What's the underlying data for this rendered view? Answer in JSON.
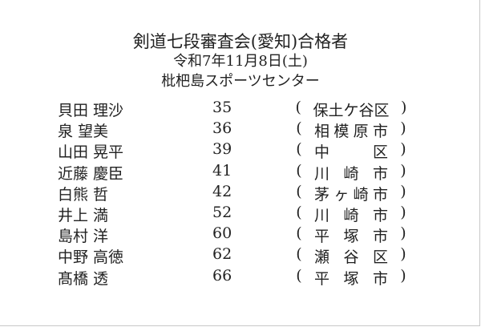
{
  "header": {
    "title": "剣道七段審査会(愛知)合格者",
    "date": "令和7年11月8日(土)",
    "venue": "枇杷島スポーツセンター"
  },
  "entries": [
    {
      "name": "貝田 理沙",
      "age": "35",
      "place": "保土ケ谷区"
    },
    {
      "name": "泉 望美",
      "age": "36",
      "place": "相模原市"
    },
    {
      "name": "山田 晃平",
      "age": "39",
      "place": "中区"
    },
    {
      "name": "近藤 慶臣",
      "age": "41",
      "place": "川崎市"
    },
    {
      "name": "白熊 哲",
      "age": "42",
      "place": "茅ヶ崎市"
    },
    {
      "name": "井上 満",
      "age": "52",
      "place": "川崎市"
    },
    {
      "name": "島村 洋",
      "age": "60",
      "place": "平塚市"
    },
    {
      "name": "中野 高徳",
      "age": "62",
      "place": "瀬谷区"
    },
    {
      "name": "髙橋 透",
      "age": "66",
      "place": "平塚市"
    }
  ]
}
